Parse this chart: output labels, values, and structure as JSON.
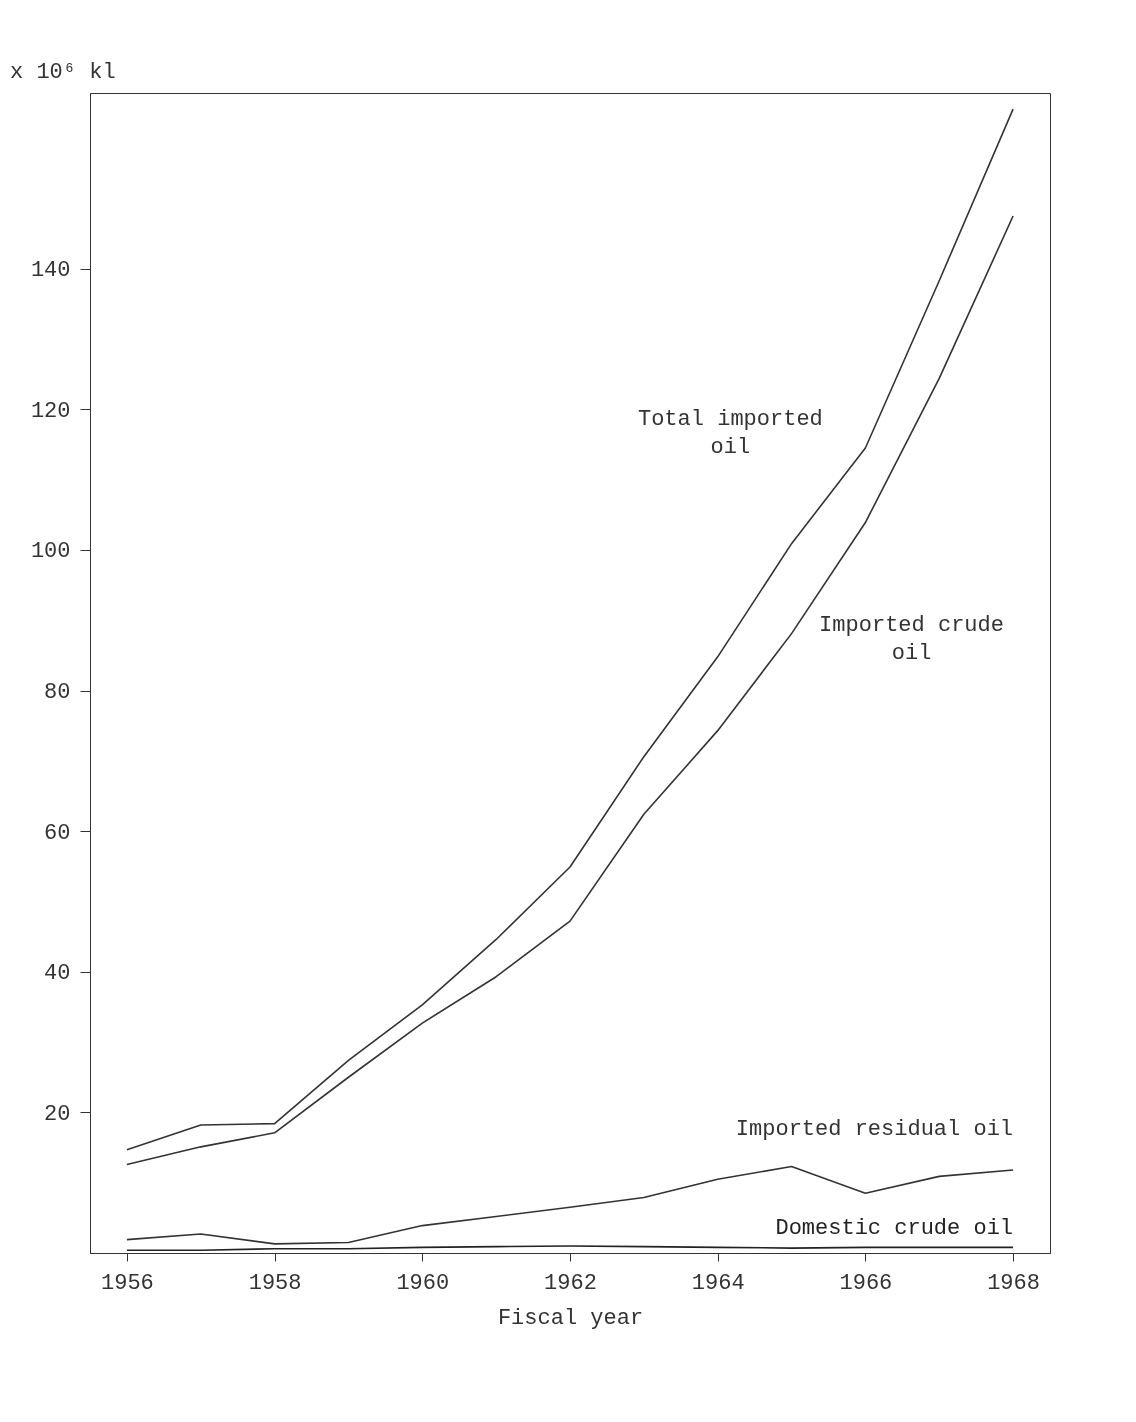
{
  "chart_data": {
    "type": "line",
    "xlabel": "Fiscal year",
    "ylabel": "x 10⁶ kl",
    "x": [
      1956,
      1957,
      1958,
      1959,
      1960,
      1961,
      1962,
      1963,
      1964,
      1965,
      1966,
      1967,
      1968
    ],
    "xlim": [
      1955.5,
      1968.5
    ],
    "xticks": [
      1956,
      1958,
      1960,
      1962,
      1964,
      1966,
      1968
    ],
    "ylim": [
      0,
      165
    ],
    "yticks": [
      20,
      40,
      60,
      80,
      100,
      120,
      140
    ],
    "grid": false,
    "legend": false,
    "marker": "none",
    "line_style": "solid",
    "series": [
      {
        "name": "Total imported oil",
        "color": "#333333",
        "values": [
          14.7,
          18.2,
          18.4,
          27.4,
          35.3,
          44.6,
          54.9,
          70.6,
          84.8,
          100.9,
          114.5,
          138.3,
          162.7
        ]
      },
      {
        "name": "Imported crude oil",
        "color": "#333333",
        "values": [
          12.6,
          15.1,
          17.1,
          25.0,
          32.7,
          39.3,
          47.2,
          62.4,
          74.3,
          88.1,
          103.9,
          124.4,
          147.5
        ]
      },
      {
        "name": "Imported residual oil",
        "color": "#333333",
        "values": [
          1.9,
          2.7,
          1.3,
          1.5,
          3.9,
          5.2,
          6.5,
          7.9,
          10.5,
          12.3,
          8.5,
          10.9,
          11.8
        ]
      },
      {
        "name": "Domestic crude oil",
        "color": "#222222",
        "values": [
          0.4,
          0.4,
          0.6,
          0.6,
          0.8,
          0.9,
          1.0,
          0.9,
          0.8,
          0.7,
          0.8,
          0.8,
          0.8
        ]
      }
    ]
  }
}
